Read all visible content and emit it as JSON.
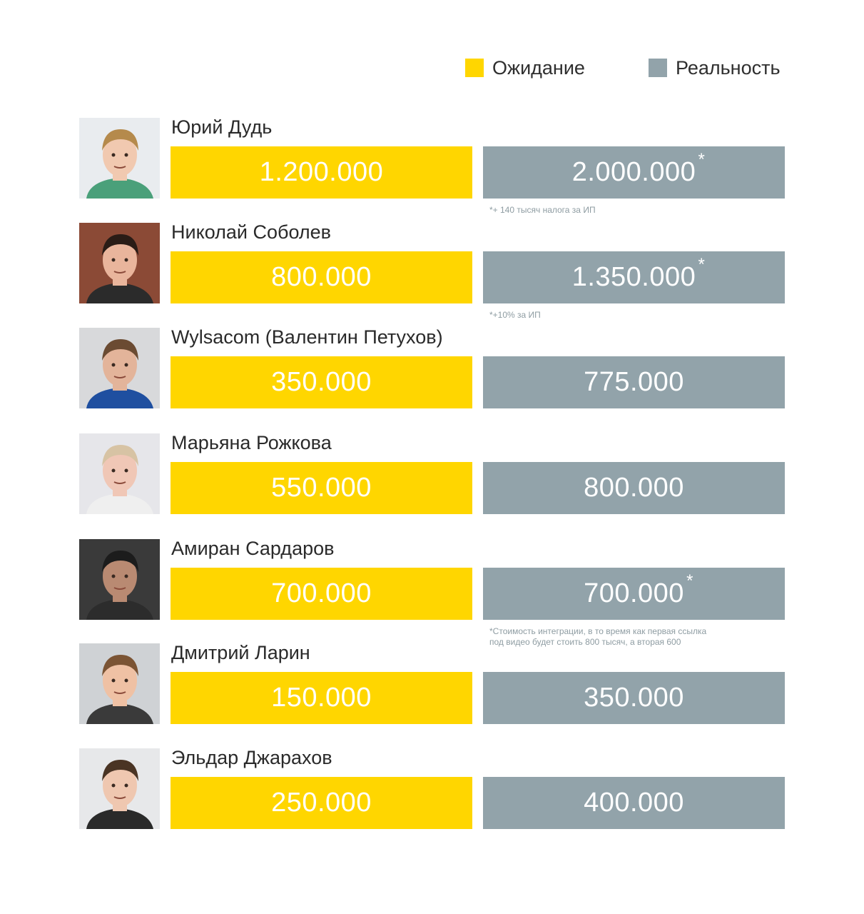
{
  "colors": {
    "expectation": "#ffd600",
    "reality": "#92a3aa"
  },
  "legend": {
    "expectation": "Ожидание",
    "reality": "Реальность"
  },
  "chart_data": {
    "type": "bar",
    "categories": [
      "Юрий Дудь",
      "Николай Соболев",
      "Wylsacom (Валентин Петухов)",
      "Марьяна Рожкова",
      "Амиран Сардаров",
      "Дмитрий Ларин",
      "Эльдар Джарахов"
    ],
    "series": [
      {
        "name": "Ожидание",
        "values": [
          1200000,
          800000,
          350000,
          550000,
          700000,
          150000,
          250000
        ],
        "labels": [
          "1.200.000",
          "800.000",
          "350.000",
          "550.000",
          "700.000",
          "150.000",
          "250.000"
        ]
      },
      {
        "name": "Реальность",
        "values": [
          2000000,
          1350000,
          775000,
          800000,
          700000,
          350000,
          400000
        ],
        "labels": [
          "2.000.000",
          "1.350.000",
          "775.000",
          "800.000",
          "700.000",
          "350.000",
          "400.000"
        ]
      }
    ],
    "legend": "top-right",
    "grid": false
  },
  "rows": [
    {
      "name": "Юрий Дудь",
      "expectation": "1.200.000",
      "reality": "2.000.000",
      "star": "*",
      "footnote": "*+ 140 тысяч налога за ИП",
      "avatar": {
        "bg": "#e9ecef",
        "skin": "#f1c9b0",
        "hair": "#b58a4c",
        "shirt": "#4aa07a"
      }
    },
    {
      "name": "Николай Соболев",
      "expectation": "800.000",
      "reality": "1.350.000",
      "star": "*",
      "footnote": "*+10% за ИП",
      "avatar": {
        "bg": "#8b4a36",
        "skin": "#e9b59c",
        "hair": "#2a1c16",
        "shirt": "#2b2b2b"
      }
    },
    {
      "name": "Wylsacom (Валентин Петухов)",
      "expectation": "350.000",
      "reality": "775.000",
      "star": "",
      "footnote": "",
      "avatar": {
        "bg": "#d8d9db",
        "skin": "#e3b49a",
        "hair": "#6b4b32",
        "shirt": "#1f4fa0"
      }
    },
    {
      "name": "Марьяна Рожкова",
      "expectation": "550.000",
      "reality": "800.000",
      "star": "",
      "footnote": "",
      "avatar": {
        "bg": "#e6e6ea",
        "skin": "#f0c7b6",
        "hair": "#d7c3a4",
        "shirt": "#efefef"
      }
    },
    {
      "name": "Амиран Сардаров",
      "expectation": "700.000",
      "reality": "700.000",
      "star": "*",
      "footnote": "*Стоимость интеграции, в то время как первая ссылка\n  под видео будет стоить 800 тысяч, а вторая 600",
      "avatar": {
        "bg": "#3a3a3a",
        "skin": "#b98a72",
        "hair": "#1c1c1c",
        "shirt": "#2c2c2c"
      }
    },
    {
      "name": "Дмитрий Ларин",
      "expectation": "150.000",
      "reality": "350.000",
      "star": "",
      "footnote": "",
      "avatar": {
        "bg": "#cfd2d5",
        "skin": "#efc1a4",
        "hair": "#7b5434",
        "shirt": "#3a3a3a"
      }
    },
    {
      "name": "Эльдар Джарахов",
      "expectation": "250.000",
      "reality": "400.000",
      "star": "",
      "footnote": "",
      "avatar": {
        "bg": "#e7e8ea",
        "skin": "#efc7b0",
        "hair": "#4a3424",
        "shirt": "#2a2a2a"
      }
    }
  ]
}
